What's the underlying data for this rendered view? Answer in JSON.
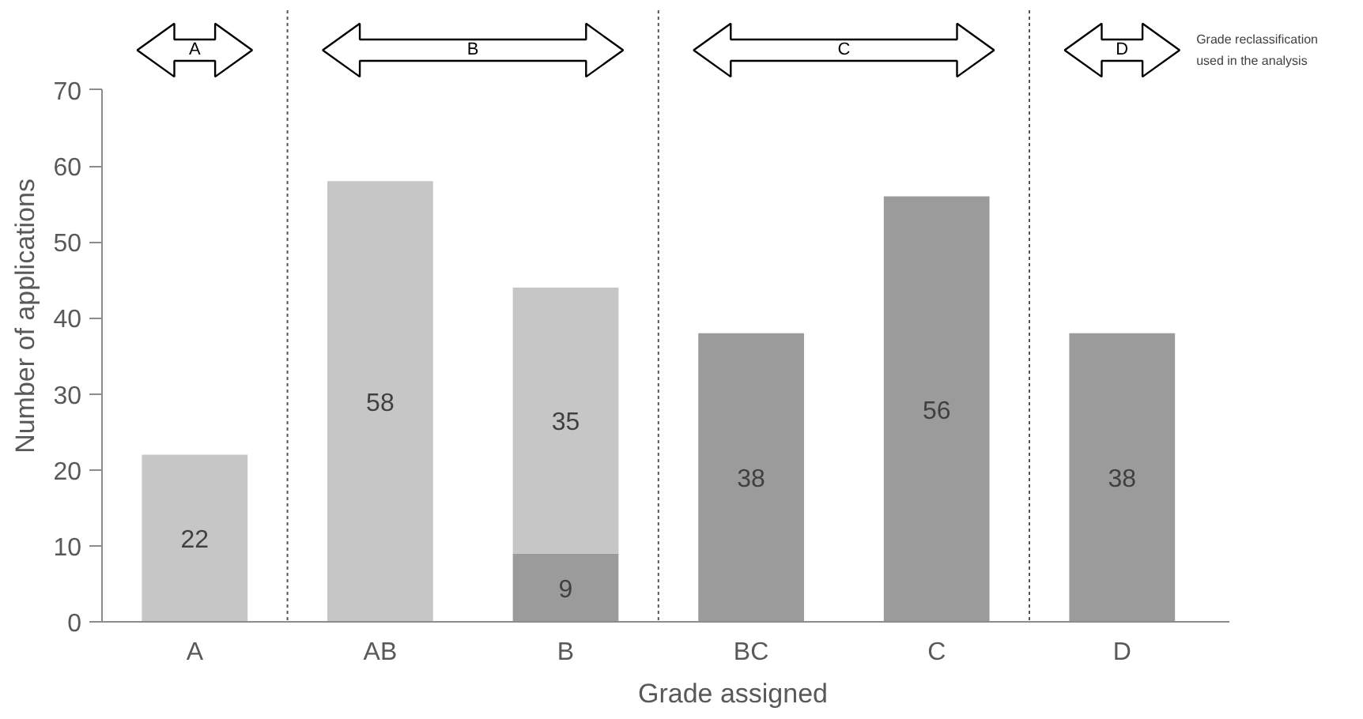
{
  "chart_data": {
    "type": "bar",
    "stacked": true,
    "xlabel": "Grade assigned",
    "ylabel": "Number of applications",
    "categories": [
      "A",
      "AB",
      "B",
      "BC",
      "C",
      "D"
    ],
    "series": [
      {
        "color": "#9b9b9b",
        "values": [
          null,
          null,
          9,
          38,
          56,
          38
        ]
      },
      {
        "color": "#c6c6c6",
        "values": [
          22,
          58,
          35,
          null,
          null,
          null
        ]
      }
    ],
    "ylim": [
      0,
      70
    ],
    "yticks": [
      0,
      10,
      20,
      30,
      40,
      50,
      60,
      70
    ],
    "grid": false,
    "data_labels": true,
    "annotations": [
      "A",
      "B",
      "C",
      "D",
      "Grade reclassification used in the analysis"
    ]
  }
}
